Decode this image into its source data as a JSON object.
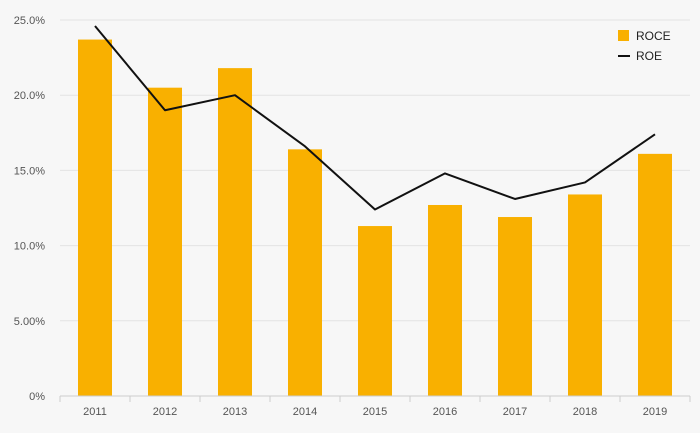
{
  "chart_data": {
    "type": "bar",
    "categories": [
      "2011",
      "2012",
      "2013",
      "2014",
      "2015",
      "2016",
      "2017",
      "2018",
      "2019"
    ],
    "series": [
      {
        "name": "ROCE",
        "type": "bar",
        "color": "#f9b000",
        "values": [
          23.7,
          20.5,
          21.8,
          16.4,
          11.3,
          12.7,
          11.9,
          13.4,
          16.1
        ]
      },
      {
        "name": "ROE",
        "type": "line",
        "color": "#111111",
        "values": [
          24.6,
          19.0,
          20.0,
          16.6,
          12.4,
          14.8,
          13.1,
          14.2,
          17.4
        ]
      }
    ],
    "y_ticks": [
      "0%",
      "5.00%",
      "10.0%",
      "15.0%",
      "20.0%",
      "25.0%"
    ],
    "ylim": [
      0,
      25
    ],
    "grid": true,
    "legend_position": "top-right"
  }
}
